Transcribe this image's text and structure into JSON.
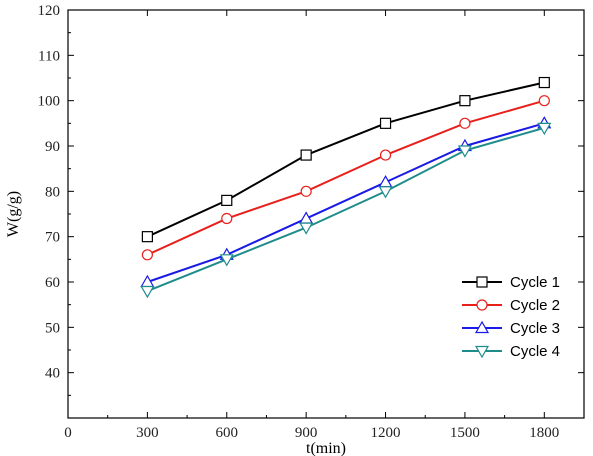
{
  "chart_data": {
    "type": "line",
    "xlabel": "t(min)",
    "ylabel": "W(g/g)",
    "xlim": [
      0,
      1950
    ],
    "ylim": [
      30,
      120
    ],
    "x_ticks": [
      0,
      300,
      600,
      900,
      1200,
      1500,
      1800
    ],
    "y_ticks": [
      40,
      50,
      60,
      70,
      80,
      90,
      100,
      110,
      120
    ],
    "x": [
      300,
      600,
      900,
      1200,
      1500,
      1800
    ],
    "grid": false,
    "legend_position": "bottom-right",
    "series": [
      {
        "name": "Cycle 1",
        "values": [
          70,
          78,
          88,
          95,
          100,
          104
        ],
        "color": "#000000",
        "marker": "square"
      },
      {
        "name": "Cycle 2",
        "values": [
          66,
          74,
          80,
          88,
          95,
          100
        ],
        "color": "#e8201c",
        "marker": "circle"
      },
      {
        "name": "Cycle 3",
        "values": [
          60,
          66,
          74,
          82,
          90,
          95
        ],
        "color": "#1a1ae6",
        "marker": "triangle-up"
      },
      {
        "name": "Cycle 4",
        "values": [
          58,
          65,
          72,
          80,
          89,
          94
        ],
        "color": "#1f8c8c",
        "marker": "triangle-down"
      }
    ]
  }
}
